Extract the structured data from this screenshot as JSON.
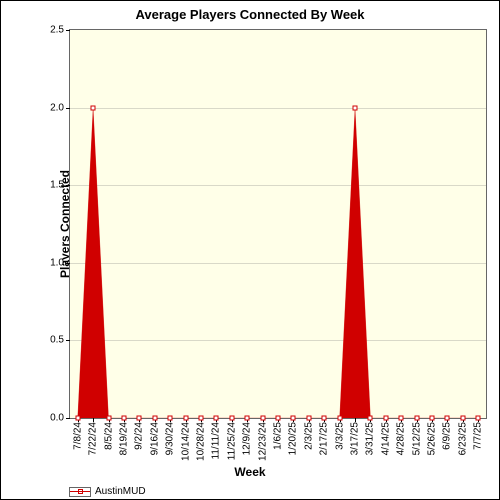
{
  "chart": {
    "type": "line",
    "title": "Average Players Connected By Week",
    "title_fontsize": 13,
    "ylabel": "Players Connected",
    "xlabel": "Week",
    "axis_label_fontsize": 12,
    "background_color": "#ffffe8",
    "plot_border_color": "#666666",
    "grid_color": "#d9d9c8",
    "tick_fontsize": 10,
    "ylim": [
      0.0,
      2.5
    ],
    "ytick_step": 0.5,
    "yticks": [
      "0.0",
      "0.5",
      "1.0",
      "1.5",
      "2.0",
      "2.5"
    ],
    "x_categories": [
      "7/8/24",
      "7/22/24",
      "8/5/24",
      "8/19/24",
      "9/2/24",
      "9/16/24",
      "9/30/24",
      "10/14/24",
      "10/28/24",
      "11/11/24",
      "11/25/24",
      "12/9/24",
      "12/23/24",
      "1/6/25",
      "1/20/25",
      "2/3/25",
      "2/17/25",
      "3/3/25",
      "3/17/25",
      "3/31/25",
      "4/14/25",
      "4/28/25",
      "5/12/25",
      "5/26/25",
      "6/9/25",
      "6/23/25",
      "7/7/25"
    ],
    "series": [
      {
        "name": "AustinMUD",
        "color": "#d00000",
        "values": [
          0.0,
          2.0,
          0.0,
          0.0,
          0.0,
          0.0,
          0.0,
          0.0,
          0.0,
          0.0,
          0.0,
          0.0,
          0.0,
          0.0,
          0.0,
          0.0,
          0.0,
          0.0,
          2.0,
          0.0,
          0.0,
          0.0,
          0.0,
          0.0,
          0.0,
          0.0,
          0.0
        ],
        "marker": "circle",
        "marker_size": 3,
        "fill_opacity": 1.0
      }
    ],
    "legend": {
      "position": "bottom-left",
      "items": [
        {
          "label": "AustinMUD",
          "color": "#d00000"
        }
      ]
    }
  }
}
